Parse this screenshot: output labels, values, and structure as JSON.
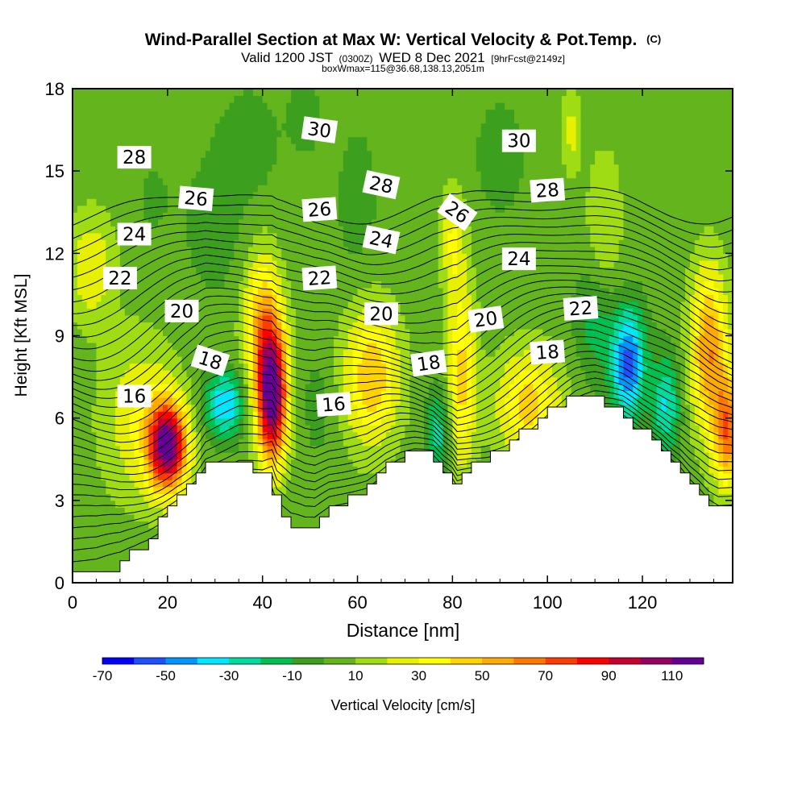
{
  "chart_data": {
    "type": "heatmap",
    "title": "Wind-Parallel Section at Max W: Vertical Velocity & Pot.Temp.",
    "title_mark": "(C)",
    "subtitle": {
      "valid": "Valid 1200 JST",
      "zulu": "(0300Z)",
      "date": "WED 8 Dec 2021",
      "fcst": "[9hrFcst@2149z]"
    },
    "subtitle2": "boxWmax=115@36.68,138.13,2051m",
    "xlabel": "Distance [nm]",
    "ylabel": "Height [Kft MSL]",
    "xlim": [
      0,
      139
    ],
    "ylim": [
      0,
      18
    ],
    "xticks": [
      0,
      20,
      40,
      60,
      80,
      100,
      120
    ],
    "yticks": [
      0,
      3,
      6,
      9,
      12,
      15,
      18
    ],
    "colorbar": {
      "label": "Vertical Velocity [cm/s]",
      "min": -70,
      "max": 120,
      "step": 10,
      "tick_labels": [
        -70,
        -50,
        -30,
        -10,
        10,
        30,
        50,
        70,
        90,
        110
      ],
      "colors": [
        "#0000ff",
        "#1e50ff",
        "#0096ff",
        "#00e6ff",
        "#00dca0",
        "#00c050",
        "#3ca01e",
        "#64b41e",
        "#a0dc14",
        "#e6f000",
        "#ffff00",
        "#ffd200",
        "#ffaa00",
        "#ff7800",
        "#ff3c00",
        "#ff0000",
        "#c80032",
        "#960064",
        "#640096"
      ]
    },
    "velocity_cells": [
      {
        "x": 20,
        "y": 5.0,
        "w": 110,
        "sx": 4,
        "sy": 1.6
      },
      {
        "x": 14,
        "y": 6.0,
        "w": 25,
        "sx": 8,
        "sy": 3
      },
      {
        "x": 32,
        "y": 6.5,
        "w": -45,
        "sx": 4,
        "sy": 1.2
      },
      {
        "x": 42,
        "y": 6.8,
        "w": 115,
        "sx": 3.2,
        "sy": 2.4
      },
      {
        "x": 40,
        "y": 9.5,
        "w": 45,
        "sx": 4,
        "sy": 2.5
      },
      {
        "x": 63,
        "y": 7.5,
        "w": 45,
        "sx": 6,
        "sy": 2.5
      },
      {
        "x": 52,
        "y": 6.5,
        "w": -8,
        "sx": 4,
        "sy": 2
      },
      {
        "x": 77,
        "y": 5.5,
        "w": -30,
        "sx": 2.5,
        "sy": 1.5
      },
      {
        "x": 82,
        "y": 7.5,
        "w": 40,
        "sx": 3,
        "sy": 3.5
      },
      {
        "x": 80,
        "y": 12.5,
        "w": 25,
        "sx": 2.5,
        "sy": 2
      },
      {
        "x": 96,
        "y": 6.5,
        "w": 40,
        "sx": 7,
        "sy": 2
      },
      {
        "x": 110,
        "y": 9.5,
        "w": -20,
        "sx": 4,
        "sy": 2
      },
      {
        "x": 117,
        "y": 8.0,
        "w": -60,
        "sx": 3.5,
        "sy": 2
      },
      {
        "x": 125,
        "y": 6.5,
        "w": -35,
        "sx": 3,
        "sy": 1.8
      },
      {
        "x": 134,
        "y": 8.5,
        "w": 55,
        "sx": 4,
        "sy": 3
      },
      {
        "x": 138,
        "y": 5.5,
        "w": 60,
        "sx": 3,
        "sy": 2
      },
      {
        "x": 4,
        "y": 11.5,
        "w": 25,
        "sx": 5,
        "sy": 2
      },
      {
        "x": 30,
        "y": 13.0,
        "w": -10,
        "sx": 6,
        "sy": 2.5
      },
      {
        "x": 37,
        "y": 16.0,
        "w": -10,
        "sx": 6,
        "sy": 2
      },
      {
        "x": 60,
        "y": 14.0,
        "w": -10,
        "sx": 4,
        "sy": 2.5
      },
      {
        "x": 90,
        "y": 15.5,
        "w": -10,
        "sx": 5,
        "sy": 2
      },
      {
        "x": 112,
        "y": 13.0,
        "w": 15,
        "sx": 4,
        "sy": 3
      },
      {
        "x": 105,
        "y": 16.5,
        "w": 20,
        "sx": 2,
        "sy": 1.5
      },
      {
        "x": 49,
        "y": 17.0,
        "w": -8,
        "sx": 4,
        "sy": 1.5
      },
      {
        "x": 17,
        "y": 14.0,
        "w": -5,
        "sx": 5,
        "sy": 2
      }
    ],
    "terrain": [
      [
        0,
        0.3
      ],
      [
        5,
        0.3
      ],
      [
        10,
        0.6
      ],
      [
        13,
        1.0
      ],
      [
        16,
        1.5
      ],
      [
        19,
        2.2
      ],
      [
        22,
        3.0
      ],
      [
        26,
        3.8
      ],
      [
        28,
        4.6
      ],
      [
        35,
        4.6
      ],
      [
        40,
        3.9
      ],
      [
        42,
        3.9
      ],
      [
        43,
        3.1
      ],
      [
        46,
        2.3
      ],
      [
        49,
        2.0
      ],
      [
        51,
        2.0
      ],
      [
        54,
        2.6
      ],
      [
        58,
        3.0
      ],
      [
        62,
        3.4
      ],
      [
        66,
        4.2
      ],
      [
        69,
        4.6
      ],
      [
        72,
        4.8
      ],
      [
        76,
        4.8
      ],
      [
        78,
        4.3
      ],
      [
        80,
        4.0
      ],
      [
        81,
        3.6
      ],
      [
        84,
        4.1
      ],
      [
        88,
        4.6
      ],
      [
        92,
        5.1
      ],
      [
        96,
        5.6
      ],
      [
        100,
        6.1
      ],
      [
        104,
        6.6
      ],
      [
        106,
        6.8
      ],
      [
        110,
        6.8
      ],
      [
        112,
        6.6
      ],
      [
        116,
        6.3
      ],
      [
        120,
        5.6
      ],
      [
        122,
        5.3
      ],
      [
        124,
        5.0
      ],
      [
        126,
        4.6
      ],
      [
        128,
        4.3
      ],
      [
        130,
        3.8
      ],
      [
        132,
        3.4
      ],
      [
        134,
        2.9
      ],
      [
        136,
        2.6
      ],
      [
        139,
        2.6
      ]
    ],
    "isentrope_levels": [
      14,
      14.5,
      15,
      15.5,
      16,
      16.5,
      17,
      17.5,
      18,
      18.5,
      19,
      19.5,
      20,
      20.5,
      21,
      21.5,
      22,
      22.5,
      23,
      23.5,
      24,
      24.5,
      25,
      25.5,
      26,
      26.5,
      27,
      27.5,
      28,
      28.5,
      29,
      29.5,
      30,
      30.5
    ],
    "isentrope_labels": [
      {
        "text": "28",
        "x": 13,
        "y": 15.5,
        "rot": 0
      },
      {
        "text": "30",
        "x": 52,
        "y": 16.5,
        "rot": 8
      },
      {
        "text": "30",
        "x": 94,
        "y": 16.1,
        "rot": 0
      },
      {
        "text": "26",
        "x": 26,
        "y": 14.0,
        "rot": 5
      },
      {
        "text": "28",
        "x": 65,
        "y": 14.5,
        "rot": 12
      },
      {
        "text": "26",
        "x": 52,
        "y": 13.6,
        "rot": -4
      },
      {
        "text": "28",
        "x": 100,
        "y": 14.3,
        "rot": -4
      },
      {
        "text": "24",
        "x": 13,
        "y": 12.7,
        "rot": 0
      },
      {
        "text": "26",
        "x": 81,
        "y": 13.5,
        "rot": 35
      },
      {
        "text": "24",
        "x": 65,
        "y": 12.5,
        "rot": 12
      },
      {
        "text": "24",
        "x": 94,
        "y": 11.8,
        "rot": 0
      },
      {
        "text": "22",
        "x": 10,
        "y": 11.1,
        "rot": 0
      },
      {
        "text": "22",
        "x": 52,
        "y": 11.1,
        "rot": -4
      },
      {
        "text": "22",
        "x": 107,
        "y": 10.0,
        "rot": -4
      },
      {
        "text": "20",
        "x": 23,
        "y": 9.9,
        "rot": 0
      },
      {
        "text": "20",
        "x": 65,
        "y": 9.8,
        "rot": 0
      },
      {
        "text": "20",
        "x": 87,
        "y": 9.6,
        "rot": -8
      },
      {
        "text": "18",
        "x": 29,
        "y": 8.1,
        "rot": 18
      },
      {
        "text": "18",
        "x": 75,
        "y": 8.0,
        "rot": -8
      },
      {
        "text": "18",
        "x": 100,
        "y": 8.4,
        "rot": -4
      },
      {
        "text": "16",
        "x": 13,
        "y": 6.8,
        "rot": 0
      },
      {
        "text": "16",
        "x": 55,
        "y": 6.5,
        "rot": -4
      }
    ]
  }
}
